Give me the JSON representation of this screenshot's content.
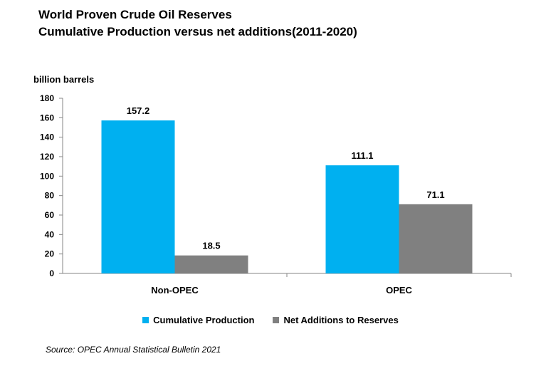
{
  "title_lines": [
    "World Proven Crude Oil Reserves",
    "Cumulative Production versus net additions(2011-2020)"
  ],
  "source": "Source: OPEC Annual Statistical Bulletin 2021",
  "chart_data": {
    "type": "bar",
    "title": "World Proven Crude Oil Reserves Cumulative Production versus net additions(2011-2020)",
    "ylabel": "billion barrels",
    "xlabel": "",
    "ylim": [
      0,
      180
    ],
    "yticks": [
      0,
      20,
      40,
      60,
      80,
      100,
      120,
      140,
      160,
      180
    ],
    "categories": [
      "Non-OPEC",
      "OPEC"
    ],
    "series": [
      {
        "name": "Cumulative Production",
        "values": [
          157.2,
          111.1
        ],
        "color": "#00b0f0"
      },
      {
        "name": "Net Additions to Reserves",
        "values": [
          18.5,
          71.1
        ],
        "color": "#808080"
      }
    ],
    "data_labels": [
      [
        "157.2",
        "111.1"
      ],
      [
        "18.5",
        "71.1"
      ]
    ],
    "grid": false,
    "legend": "bottom"
  }
}
